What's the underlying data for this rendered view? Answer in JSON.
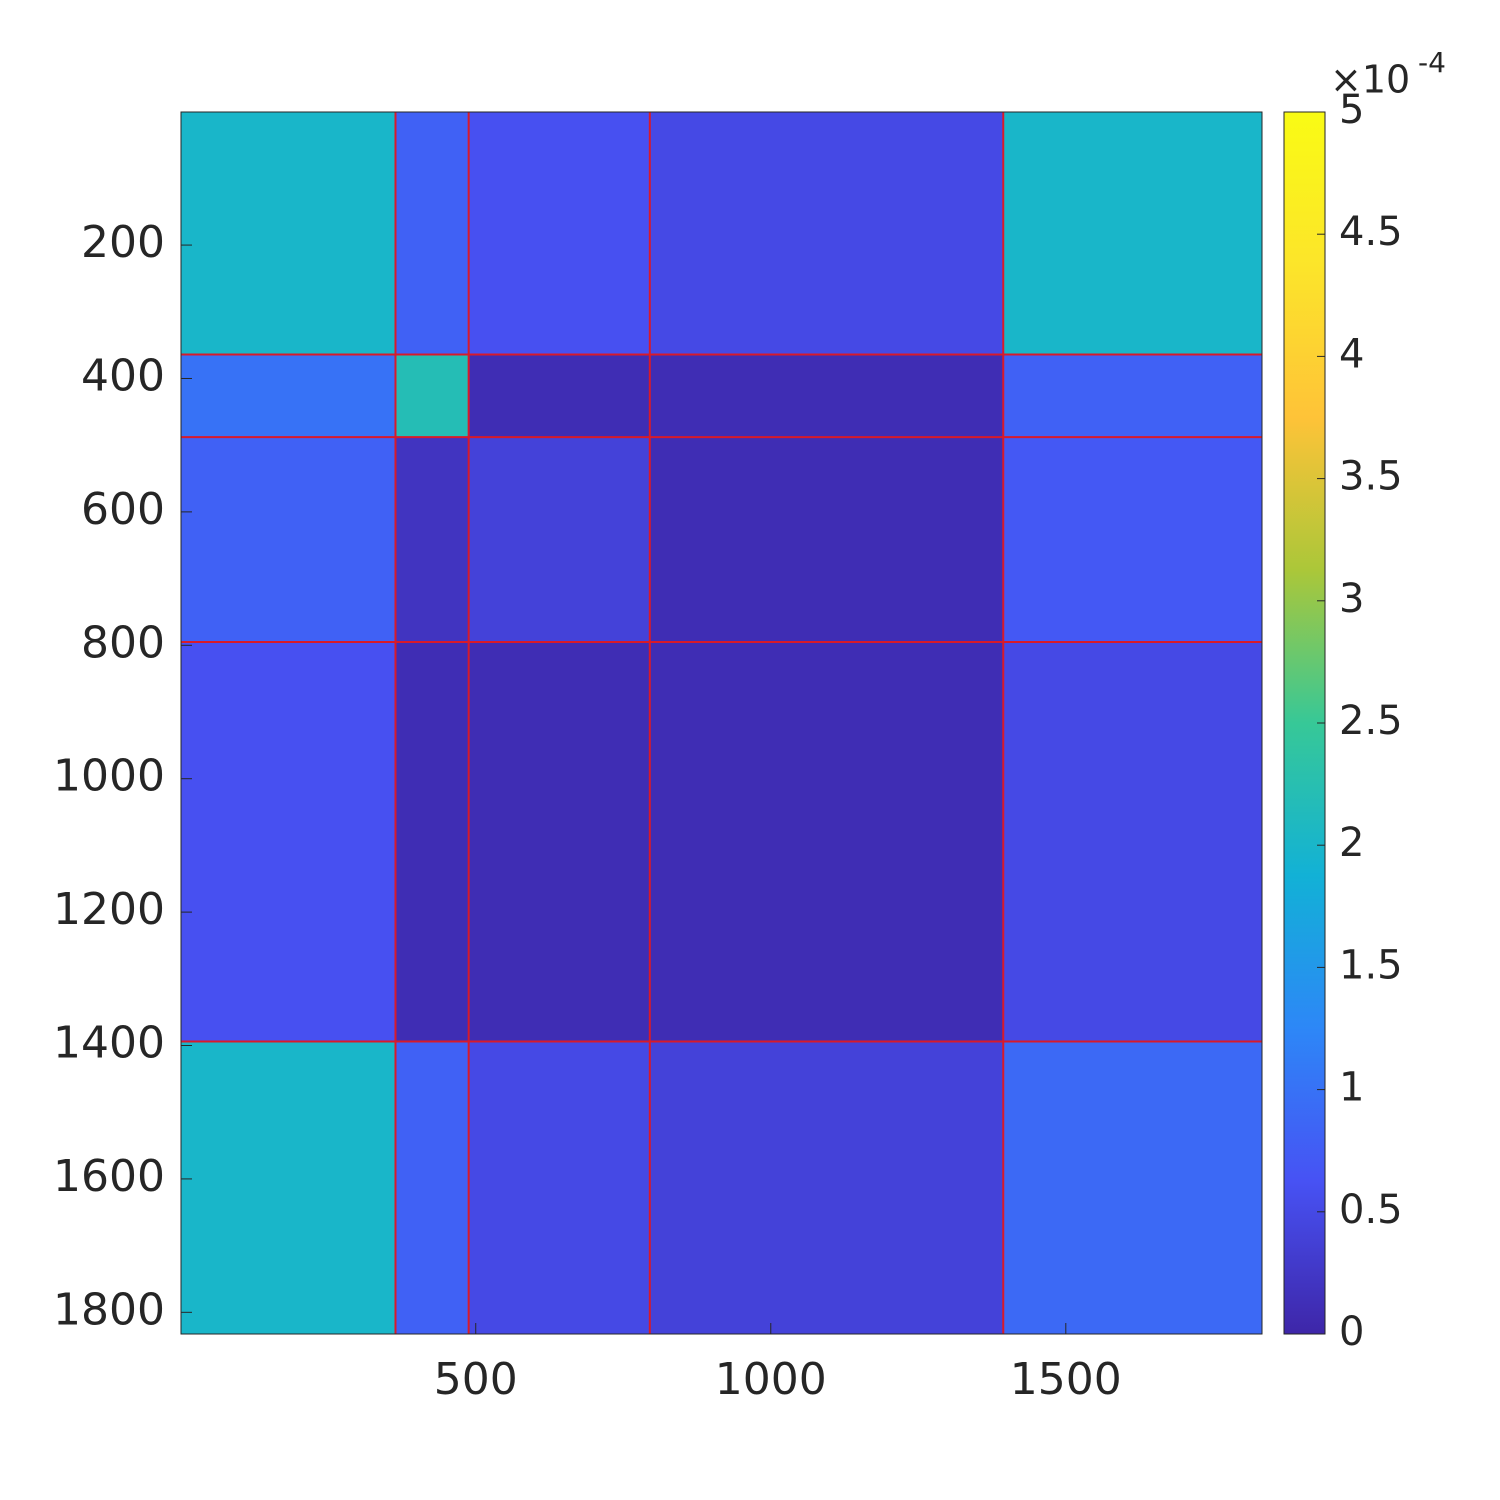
{
  "chart_data": {
    "type": "heatmap",
    "xlim": [
      0.5,
      1832.5
    ],
    "ylim": [
      0.5,
      1832.5
    ],
    "y_reversed": true,
    "xticks": [
      500,
      1000,
      1500
    ],
    "yticks": [
      200,
      400,
      600,
      800,
      1000,
      1200,
      1400,
      1600,
      1800
    ],
    "block_edges": [
      364,
      488,
      795,
      1394
    ],
    "edge_color": "#d81a2a",
    "values": [
      [
        2.0,
        0.8,
        0.6,
        0.5,
        2.0
      ],
      [
        1.0,
        2.2,
        0.1,
        0.1,
        0.8
      ],
      [
        0.8,
        0.2,
        0.4,
        0.1,
        0.7
      ],
      [
        0.6,
        0.1,
        0.1,
        0.1,
        0.5
      ],
      [
        2.0,
        0.8,
        0.5,
        0.4,
        0.9
      ]
    ],
    "clim": [
      0,
      5
    ],
    "colorbar_ticks": [
      0,
      0.5,
      1,
      1.5,
      2,
      2.5,
      3,
      3.5,
      4,
      4.5,
      5
    ],
    "colorbar_multiplier": "×10",
    "colorbar_exponent": "-4",
    "colormap": [
      "#3e26a8",
      "#4752f4",
      "#2d87f7",
      "#12b1d6",
      "#37c897",
      "#abc739",
      "#fec338",
      "#fce52a",
      "#f9fb14"
    ]
  }
}
